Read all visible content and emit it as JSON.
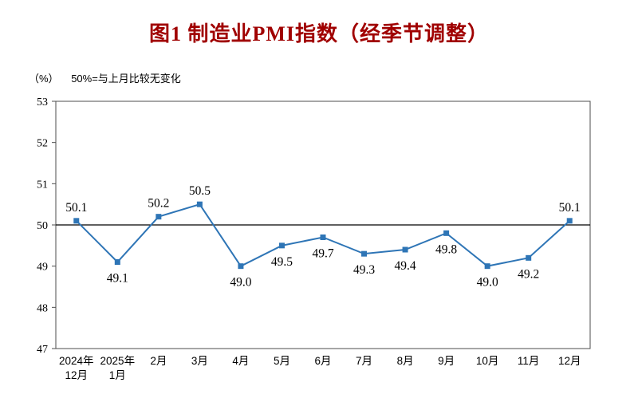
{
  "title": "图1 制造业PMI指数（经季节调整）",
  "subtitle": {
    "unit": "（%）",
    "note": "50%=与上月比较无变化"
  },
  "chart_data": {
    "type": "line",
    "title": "图1 制造业PMI指数（经季节调整）",
    "categories": [
      "2024年\n12月",
      "2025年\n1月",
      "2月",
      "3月",
      "4月",
      "5月",
      "6月",
      "7月",
      "8月",
      "9月",
      "10月",
      "11月",
      "12月"
    ],
    "values": [
      50.1,
      49.1,
      50.2,
      50.5,
      49.0,
      49.5,
      49.7,
      49.3,
      49.4,
      49.8,
      49.0,
      49.2,
      50.1
    ],
    "xlabel": "",
    "ylabel": "（%）",
    "ylim": [
      47,
      53
    ],
    "yticks": [
      47,
      48,
      49,
      50,
      51,
      52,
      53
    ],
    "reference_line": 50,
    "reference_note": "50%=与上月比较无变化",
    "grid": false,
    "legend_position": "none",
    "marker": "square",
    "colors": {
      "line": "#2e75b6",
      "marker": "#2e75b6",
      "title": "#a00000",
      "axis": "#4d4d4d",
      "reference": "#000000",
      "label": "#000000"
    }
  }
}
